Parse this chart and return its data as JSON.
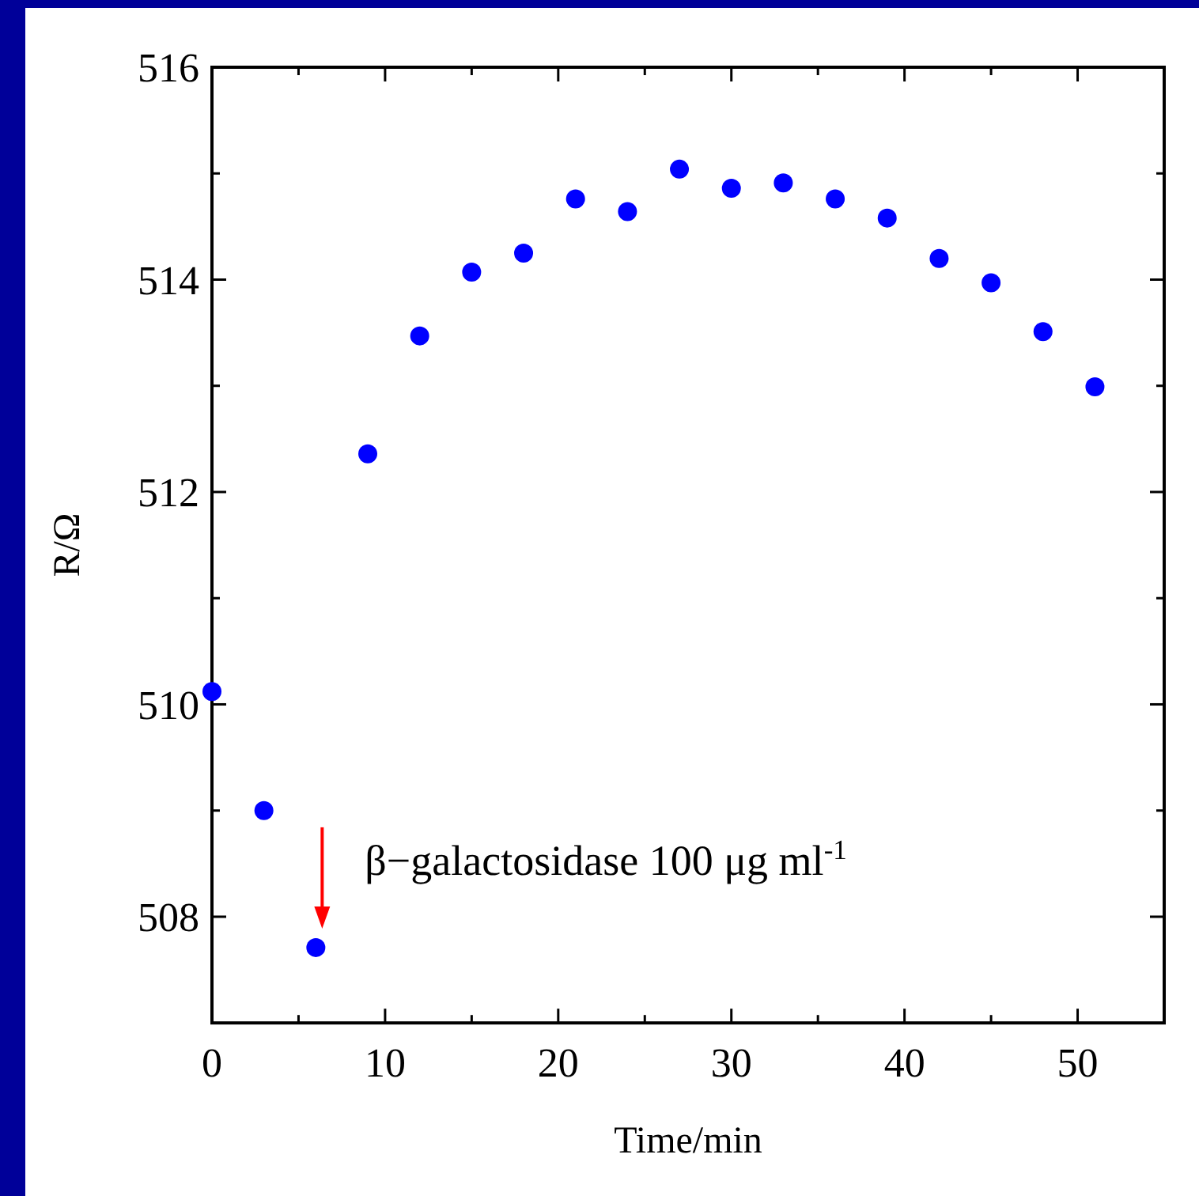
{
  "chart_data": {
    "type": "scatter",
    "xlabel": "Time/min",
    "ylabel": "R/Ω",
    "x": [
      0,
      3,
      6,
      9,
      12,
      15,
      18,
      21,
      24,
      27,
      30,
      33,
      36,
      39,
      42,
      45,
      48,
      51
    ],
    "series": [
      {
        "color": "#0000ff",
        "values": [
          510.12,
          509.0,
          507.71,
          512.36,
          513.47,
          514.07,
          514.25,
          514.76,
          514.64,
          515.04,
          514.86,
          514.91,
          514.76,
          514.58,
          514.2,
          513.97,
          513.51,
          512.99
        ]
      }
    ],
    "xlim": [
      0,
      55
    ],
    "ylim": [
      507,
      516
    ],
    "xticks": [
      0,
      {
        "value": 5,
        "label": null
      },
      10,
      {
        "value": 15,
        "label": null
      },
      20,
      {
        "value": 25,
        "label": null
      },
      30,
      {
        "value": 35,
        "label": null
      },
      40,
      {
        "value": 45,
        "label": null
      },
      50
    ],
    "yticks": [
      508,
      {
        "value": 509,
        "label": null
      },
      510,
      {
        "value": 511,
        "label": null
      },
      512,
      {
        "value": 513,
        "label": null
      },
      514,
      {
        "value": 515,
        "label": null
      },
      516
    ],
    "marker": "circle",
    "grid": false,
    "annotations": [
      {
        "text": "β−galactosidase 100 μg ml$^{-1}$",
        "x": 6,
        "y": 507.71
      }
    ]
  }
}
